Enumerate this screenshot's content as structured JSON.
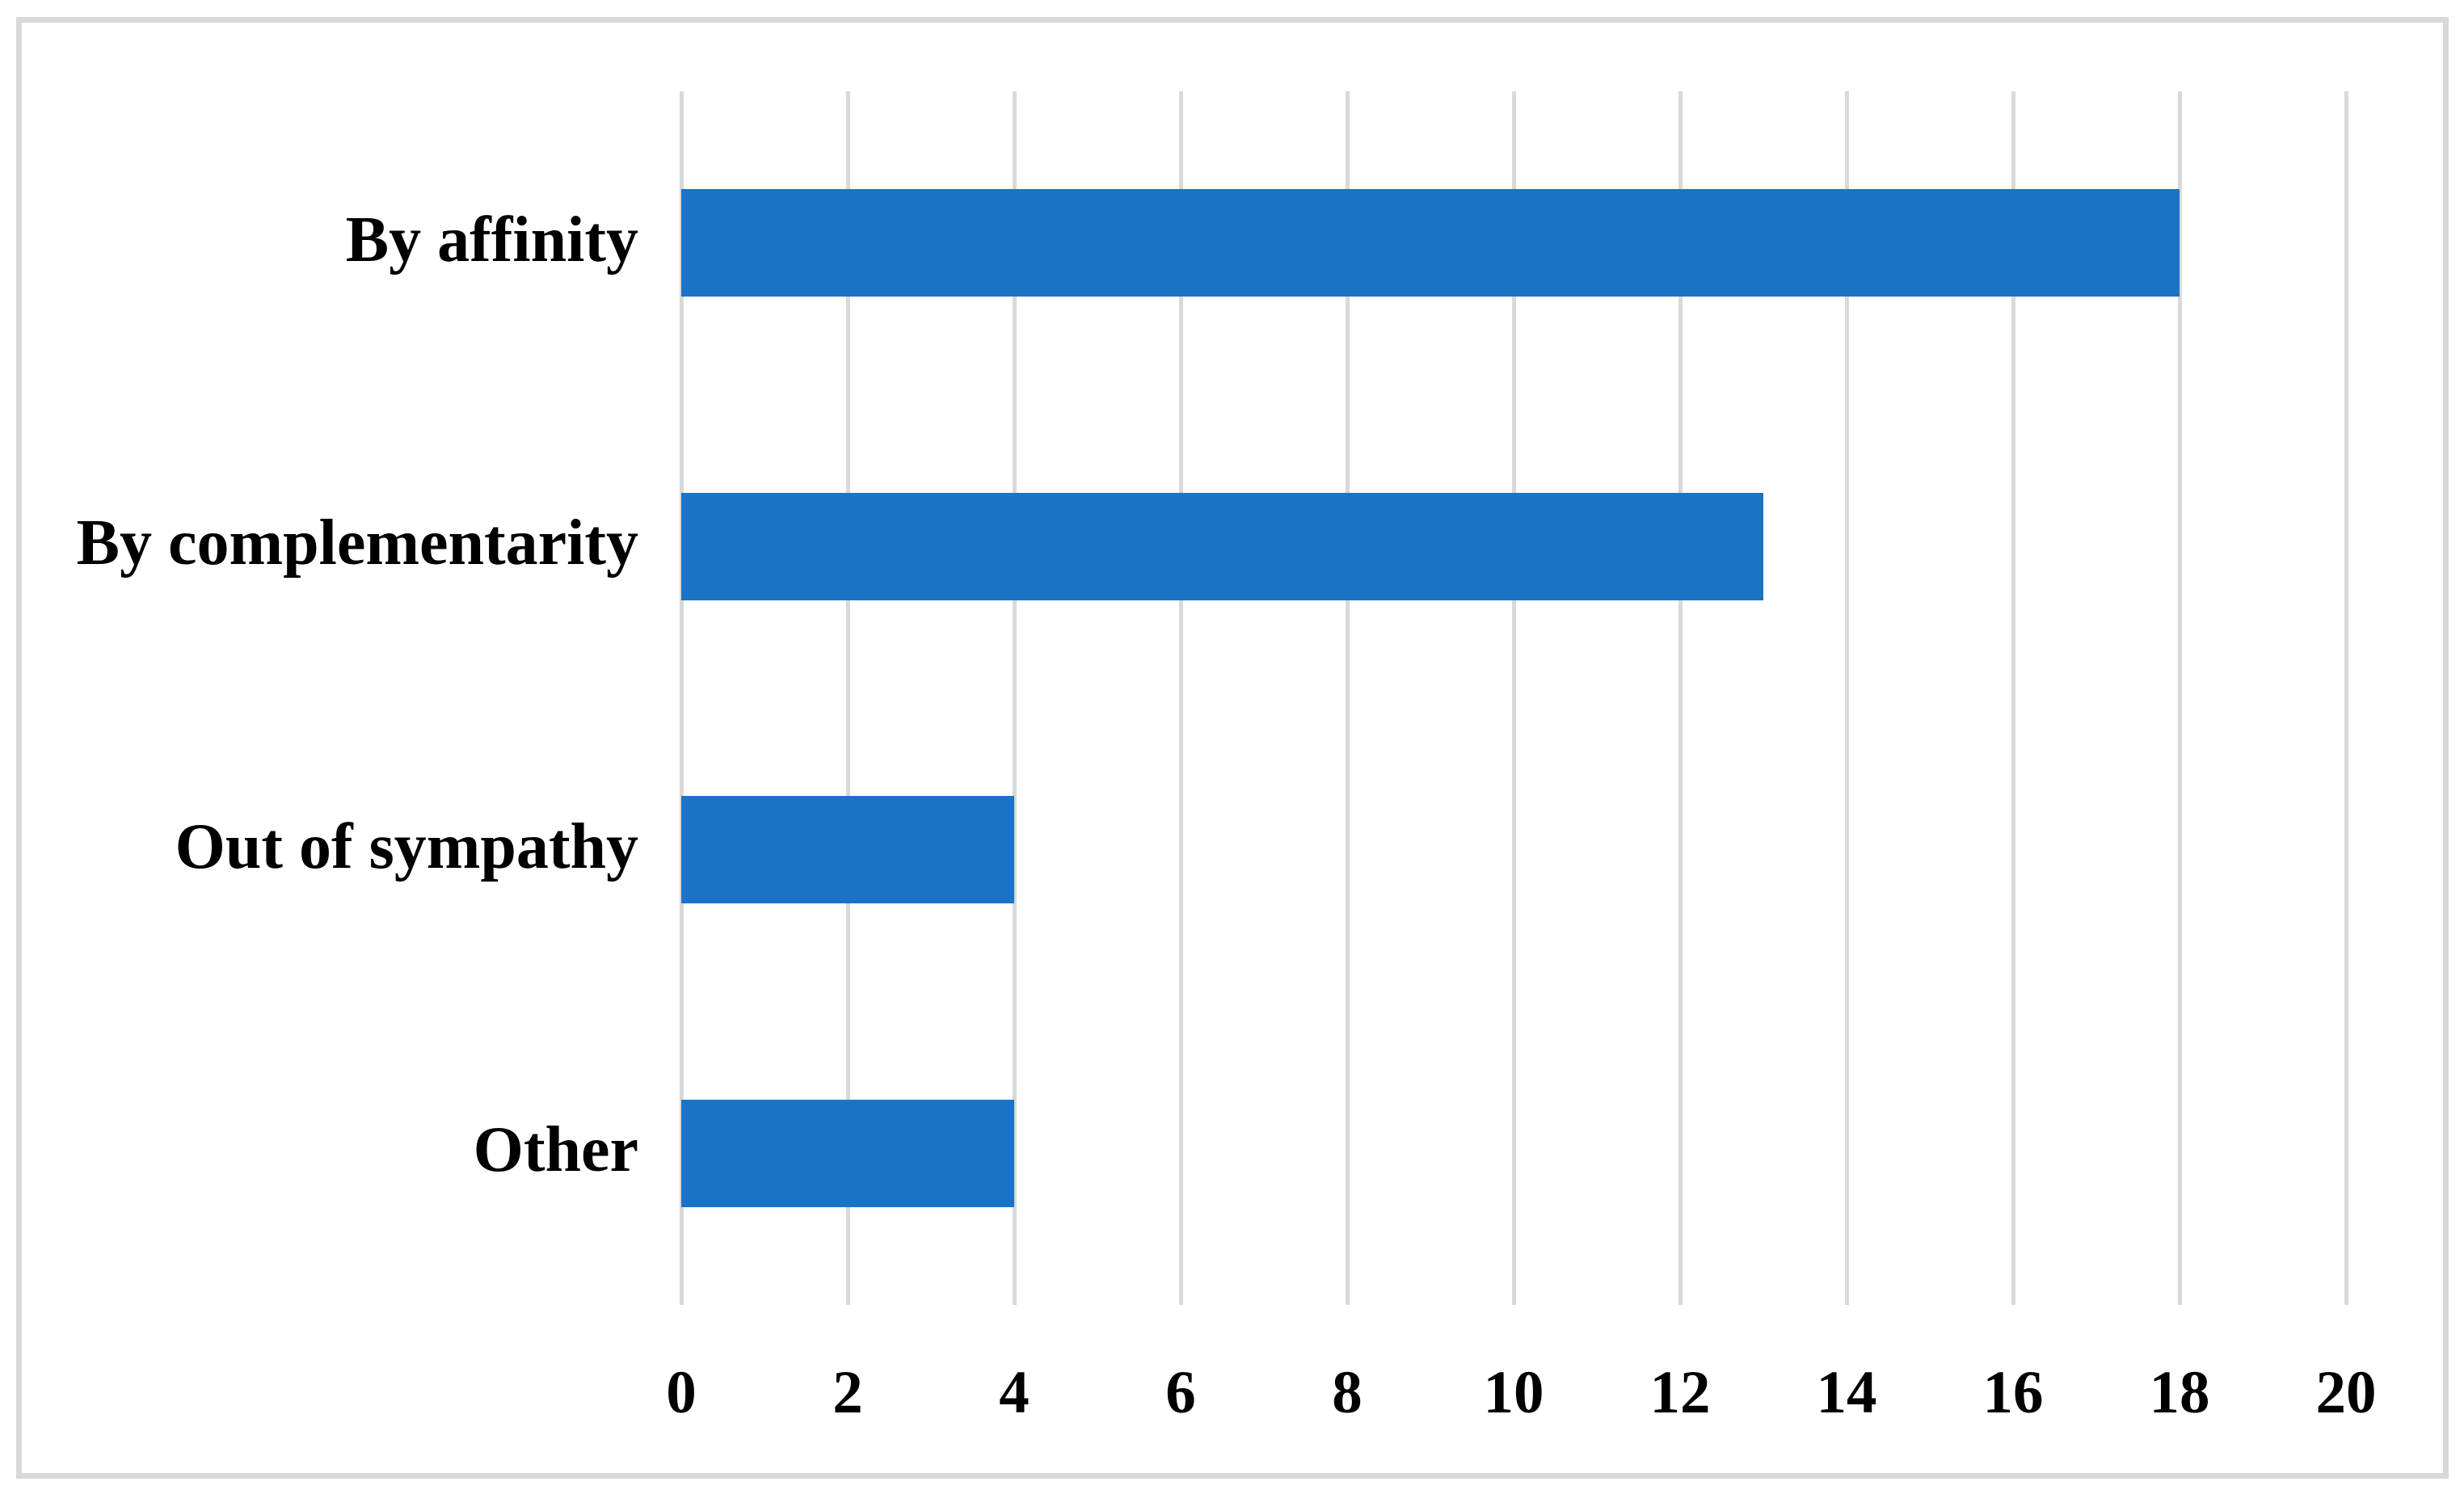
{
  "chart_data": {
    "type": "bar",
    "orientation": "horizontal",
    "title": "",
    "xlabel": "",
    "ylabel": "",
    "categories": [
      "By affinity",
      "By complementarity",
      "Out of sympathy",
      "Other"
    ],
    "values": [
      18,
      13,
      4,
      4
    ],
    "xlim": [
      0,
      20
    ],
    "xticks": [
      0,
      2,
      4,
      6,
      8,
      10,
      12,
      14,
      16,
      18,
      20
    ],
    "grid": "vertical-only",
    "legend_position": "none",
    "colors": {
      "bar": "#1b73c5",
      "gridline": "#d9d9d9",
      "frame_border": "#d9d9d9",
      "text": "#000000",
      "background": "#ffffff"
    }
  }
}
